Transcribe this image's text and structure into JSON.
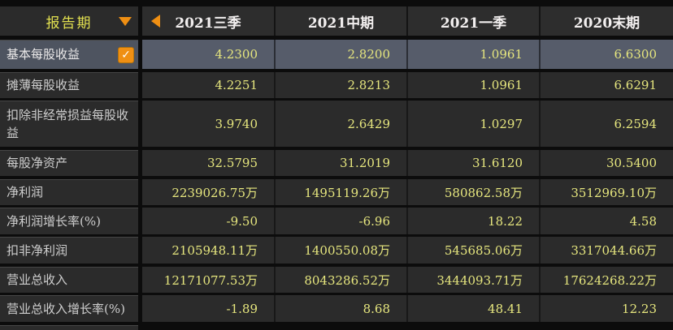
{
  "sidebar": {
    "header": {
      "label": "报告期"
    },
    "rows": [
      {
        "label": "基本每股收益",
        "selected": true,
        "checkbox": true,
        "check_glyph": "✓"
      },
      {
        "label": "摊薄每股收益"
      },
      {
        "label": "扣除非经常损益每股收益"
      },
      {
        "label": "每股净资产"
      },
      {
        "label": "净利润"
      },
      {
        "label": "净利润增长率(%)"
      },
      {
        "label": "扣非净利润"
      },
      {
        "label": "营业总收入"
      },
      {
        "label": "营业总收入增长率(%)"
      }
    ]
  },
  "table": {
    "columns": [
      "2021三季",
      "2021中期",
      "2021一季",
      "2020末期"
    ],
    "rows": [
      {
        "metric": "基本每股收益",
        "highlighted": true,
        "values": [
          "4.2300",
          "2.8200",
          "1.0961",
          "6.6300"
        ]
      },
      {
        "metric": "摊薄每股收益",
        "values": [
          "4.2251",
          "2.8213",
          "1.0961",
          "6.6291"
        ]
      },
      {
        "metric": "扣除非经常损益每股收益",
        "values": [
          "3.9740",
          "2.6429",
          "1.0297",
          "6.2594"
        ]
      },
      {
        "metric": "每股净资产",
        "values": [
          "32.5795",
          "31.2019",
          "31.6120",
          "30.5400"
        ]
      },
      {
        "metric": "净利润",
        "values": [
          "2239026.75万",
          "1495119.26万",
          "580862.58万",
          "3512969.10万"
        ]
      },
      {
        "metric": "净利润增长率(%)",
        "values": [
          "-9.50",
          "-6.96",
          "18.22",
          "4.58"
        ]
      },
      {
        "metric": "扣非净利润",
        "values": [
          "2105948.11万",
          "1400550.08万",
          "545685.06万",
          "3317044.66万"
        ]
      },
      {
        "metric": "营业总收入",
        "values": [
          "12171077.53万",
          "8043286.52万",
          "3444093.71万",
          "17624268.22万"
        ]
      },
      {
        "metric": "营业总收入增长率(%)",
        "values": [
          "-1.89",
          "8.68",
          "48.41",
          "12.23"
        ]
      }
    ]
  },
  "colors": {
    "background": "#0c0c0c",
    "panel_bg": "#2b2b2b",
    "row_highlight_bg": "#565c6a",
    "sidebar_selected_bg": "#4e5460",
    "value_text": "#e6e67e",
    "label_text": "#cfcfcf",
    "header_text": "#f2efef",
    "period_label_text": "#e3e150",
    "accent_orange": "#ef8f13"
  }
}
